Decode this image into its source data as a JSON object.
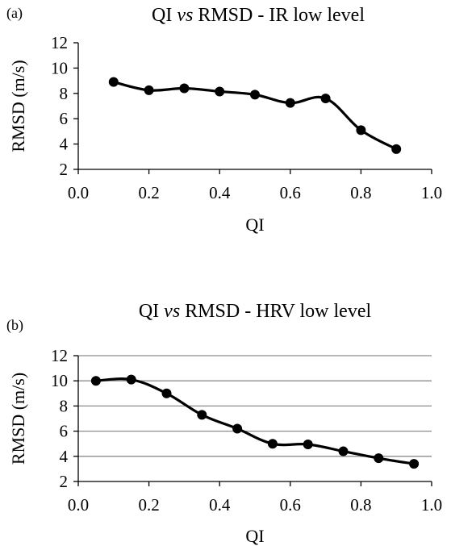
{
  "chart_data": [
    {
      "type": "line",
      "panel_label": "(a)",
      "title_prefix": "QI ",
      "title_italic": "vs",
      "title_suffix": " RMSD - IR low level",
      "xlabel": "QI",
      "ylabel": "RMSD (m/s)",
      "xlim": [
        0.0,
        1.0
      ],
      "ylim": [
        2,
        12
      ],
      "x_ticks": [
        "0.0",
        "0.2",
        "0.4",
        "0.6",
        "0.8",
        "1.0"
      ],
      "y_ticks": [
        "2",
        "4",
        "6",
        "8",
        "10",
        "12"
      ],
      "grid": false,
      "series": [
        {
          "x": [
            0.1,
            0.2,
            0.3,
            0.4,
            0.5,
            0.6,
            0.7,
            0.8,
            0.9
          ],
          "y": [
            8.9,
            8.25,
            8.4,
            8.15,
            7.9,
            7.25,
            7.6,
            5.1,
            3.6
          ]
        }
      ]
    },
    {
      "type": "line",
      "panel_label": "(b)",
      "title_prefix": "QI ",
      "title_italic": "vs",
      "title_suffix": " RMSD - HRV low level",
      "xlabel": "QI",
      "ylabel": "RMSD (m/s)",
      "xlim": [
        0.0,
        1.0
      ],
      "ylim": [
        2,
        12
      ],
      "x_ticks": [
        "0.0",
        "0.2",
        "0.4",
        "0.6",
        "0.8",
        "1.0"
      ],
      "y_ticks": [
        "2",
        "4",
        "6",
        "8",
        "10",
        "12"
      ],
      "grid": true,
      "series": [
        {
          "x": [
            0.05,
            0.15,
            0.25,
            0.35,
            0.45,
            0.55,
            0.65,
            0.75,
            0.85,
            0.95
          ],
          "y": [
            10.0,
            10.1,
            9.0,
            7.3,
            6.2,
            5.0,
            4.95,
            4.4,
            3.85,
            3.4
          ]
        }
      ]
    }
  ]
}
